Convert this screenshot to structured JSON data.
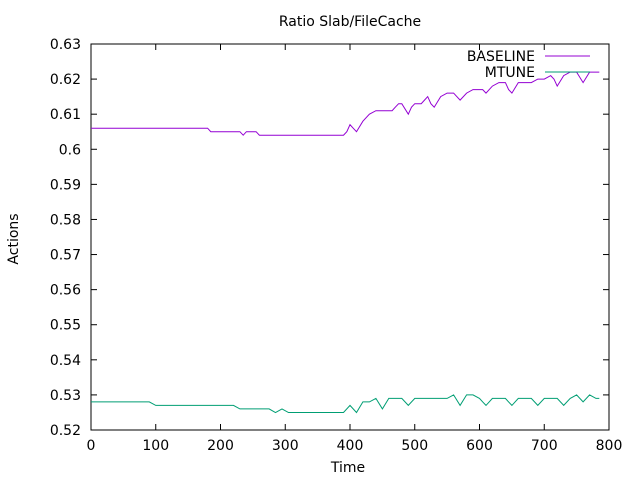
{
  "chart_data": {
    "type": "line",
    "title": "Ratio Slab/FileCache",
    "xlabel": "Time",
    "ylabel": "Actions",
    "xlim": [
      0,
      800
    ],
    "ylim": [
      0.52,
      0.63
    ],
    "xticks": [
      0,
      100,
      200,
      300,
      400,
      500,
      600,
      700,
      800
    ],
    "yticks": [
      0.52,
      0.53,
      0.54,
      0.55,
      0.56,
      0.57,
      0.58,
      0.59,
      0.6,
      0.61,
      0.62,
      0.63
    ],
    "grid": false,
    "legend_position": "top-right",
    "series": [
      {
        "name": "BASELINE",
        "color": "#9400d3",
        "x": [
          0,
          180,
          185,
          230,
          235,
          240,
          245,
          255,
          260,
          265,
          300,
          390,
          395,
          400,
          405,
          410,
          420,
          430,
          440,
          450,
          460,
          465,
          470,
          475,
          480,
          490,
          495,
          500,
          510,
          515,
          520,
          525,
          530,
          540,
          550,
          560,
          565,
          570,
          580,
          590,
          600,
          605,
          610,
          620,
          630,
          640,
          645,
          650,
          660,
          670,
          680,
          690,
          700,
          710,
          715,
          720,
          730,
          740,
          745,
          750,
          760,
          770,
          780,
          785
        ],
        "y": [
          0.606,
          0.606,
          0.605,
          0.605,
          0.604,
          0.605,
          0.605,
          0.605,
          0.604,
          0.604,
          0.604,
          0.604,
          0.605,
          0.607,
          0.606,
          0.605,
          0.608,
          0.61,
          0.611,
          0.611,
          0.611,
          0.611,
          0.612,
          0.613,
          0.613,
          0.61,
          0.612,
          0.613,
          0.613,
          0.614,
          0.615,
          0.613,
          0.612,
          0.615,
          0.616,
          0.616,
          0.615,
          0.614,
          0.616,
          0.617,
          0.617,
          0.617,
          0.616,
          0.618,
          0.619,
          0.619,
          0.617,
          0.616,
          0.619,
          0.619,
          0.619,
          0.62,
          0.62,
          0.621,
          0.62,
          0.618,
          0.621,
          0.622,
          0.622,
          0.622,
          0.619,
          0.622,
          0.622,
          0.622
        ]
      },
      {
        "name": "MTUNE",
        "color": "#009e73",
        "x": [
          0,
          90,
          100,
          150,
          220,
          230,
          260,
          275,
          285,
          295,
          305,
          350,
          390,
          400,
          410,
          420,
          430,
          440,
          450,
          460,
          470,
          480,
          490,
          500,
          510,
          540,
          550,
          560,
          570,
          580,
          590,
          600,
          605,
          610,
          620,
          630,
          640,
          645,
          650,
          660,
          670,
          680,
          690,
          700,
          710,
          720,
          730,
          740,
          750,
          760,
          770,
          780,
          785
        ],
        "y": [
          0.528,
          0.528,
          0.527,
          0.527,
          0.527,
          0.526,
          0.526,
          0.526,
          0.525,
          0.526,
          0.525,
          0.525,
          0.525,
          0.527,
          0.525,
          0.528,
          0.528,
          0.529,
          0.526,
          0.529,
          0.529,
          0.529,
          0.527,
          0.529,
          0.529,
          0.529,
          0.529,
          0.53,
          0.527,
          0.53,
          0.53,
          0.529,
          0.528,
          0.527,
          0.529,
          0.529,
          0.529,
          0.528,
          0.527,
          0.529,
          0.529,
          0.529,
          0.527,
          0.529,
          0.529,
          0.529,
          0.527,
          0.529,
          0.53,
          0.528,
          0.53,
          0.529,
          0.529
        ]
      }
    ]
  }
}
